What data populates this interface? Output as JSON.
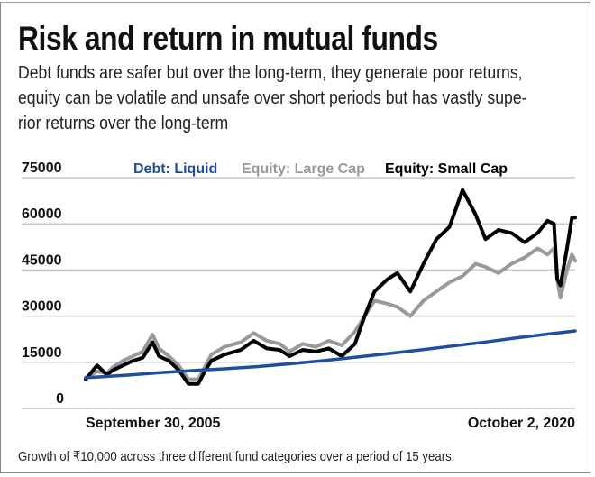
{
  "header": {
    "title": "Risk and return in mutual funds",
    "subtitle_lines": [
      "Debt funds are safer but over the long-term, they generate poor returns,",
      "equity can be volatile and unsafe over short periods but has vastly supe-",
      "rior returns over the long-term"
    ]
  },
  "footer": {
    "caption": "Growth of ₹10,000 across three different fund categories over a period of 15 years."
  },
  "colors": {
    "debt": "#1f4e9e",
    "large_cap": "#999999",
    "small_cap": "#000000",
    "grid": "#c8c8c8"
  },
  "chart_data": {
    "type": "line",
    "title": "Risk and return in mutual funds",
    "xlabel": "",
    "ylabel": "",
    "x_start_label": "September 30, 2005",
    "x_end_label": "October 2, 2020",
    "xlim": [
      2005.75,
      2020.75
    ],
    "ylim": [
      0,
      75000
    ],
    "yticks": [
      "0",
      "15000",
      "30000",
      "45000",
      "60000",
      "75000"
    ],
    "ytick_values": [
      0,
      15000,
      30000,
      45000,
      60000,
      75000
    ],
    "grid": true,
    "legend_position": "top",
    "series": [
      {
        "name": "Debt: Liquid",
        "x": [
          2005.75,
          2007,
          2008,
          2009,
          2010,
          2011,
          2012,
          2013,
          2014,
          2015,
          2016,
          2017,
          2018,
          2019,
          2020,
          2020.75
        ],
        "values": [
          10000,
          10800,
          11600,
          12300,
          12900,
          13600,
          14500,
          15500,
          16600,
          17800,
          19000,
          20300,
          21600,
          23000,
          24300,
          25200
        ]
      },
      {
        "name": "Equity: Large Cap",
        "x": [
          2005.75,
          2006.1,
          2006.4,
          2006.6,
          2006.9,
          2007.2,
          2007.5,
          2007.8,
          2008.0,
          2008.3,
          2008.6,
          2008.9,
          2009.2,
          2009.4,
          2009.6,
          2010.0,
          2010.5,
          2010.9,
          2011.3,
          2011.7,
          2012.0,
          2012.4,
          2012.8,
          2013.2,
          2013.6,
          2014.0,
          2014.3,
          2014.6,
          2015.0,
          2015.3,
          2015.7,
          2016.1,
          2016.5,
          2016.9,
          2017.3,
          2017.7,
          2018.0,
          2018.4,
          2018.8,
          2019.2,
          2019.6,
          2019.9,
          2020.1,
          2020.2,
          2020.3,
          2020.5,
          2020.65,
          2020.75
        ],
        "values": [
          10000,
          12000,
          11500,
          13500,
          15500,
          17000,
          18500,
          24000,
          19500,
          17000,
          14000,
          9500,
          9500,
          13500,
          17500,
          20000,
          21500,
          24500,
          22000,
          21000,
          18500,
          21000,
          20000,
          22000,
          20500,
          25000,
          30000,
          35000,
          34000,
          33000,
          30000,
          35000,
          38000,
          41000,
          43000,
          47000,
          46000,
          44000,
          47000,
          49000,
          52000,
          50000,
          52000,
          42000,
          36000,
          45000,
          50000,
          48000
        ]
      },
      {
        "name": "Equity: Small Cap",
        "x": [
          2005.75,
          2006.1,
          2006.4,
          2006.6,
          2006.9,
          2007.2,
          2007.5,
          2007.8,
          2008.0,
          2008.3,
          2008.6,
          2008.9,
          2009.2,
          2009.4,
          2009.6,
          2010.0,
          2010.5,
          2010.9,
          2011.3,
          2011.7,
          2012.0,
          2012.4,
          2012.8,
          2013.2,
          2013.6,
          2014.0,
          2014.3,
          2014.6,
          2015.0,
          2015.3,
          2015.7,
          2016.1,
          2016.5,
          2016.9,
          2017.3,
          2017.7,
          2018.0,
          2018.4,
          2018.8,
          2019.2,
          2019.6,
          2019.9,
          2020.1,
          2020.2,
          2020.3,
          2020.5,
          2020.65,
          2020.75
        ],
        "values": [
          9500,
          14000,
          11000,
          12500,
          14000,
          15500,
          16500,
          21500,
          17000,
          15500,
          12500,
          8000,
          8000,
          12000,
          15500,
          17500,
          19000,
          22000,
          19500,
          19000,
          17000,
          19000,
          18500,
          19500,
          17000,
          21000,
          30000,
          38000,
          42000,
          44000,
          38000,
          47000,
          55000,
          59000,
          71000,
          63000,
          55000,
          58000,
          57000,
          54000,
          57000,
          61000,
          60000,
          42000,
          40000,
          52000,
          62000,
          62000
        ]
      }
    ]
  }
}
